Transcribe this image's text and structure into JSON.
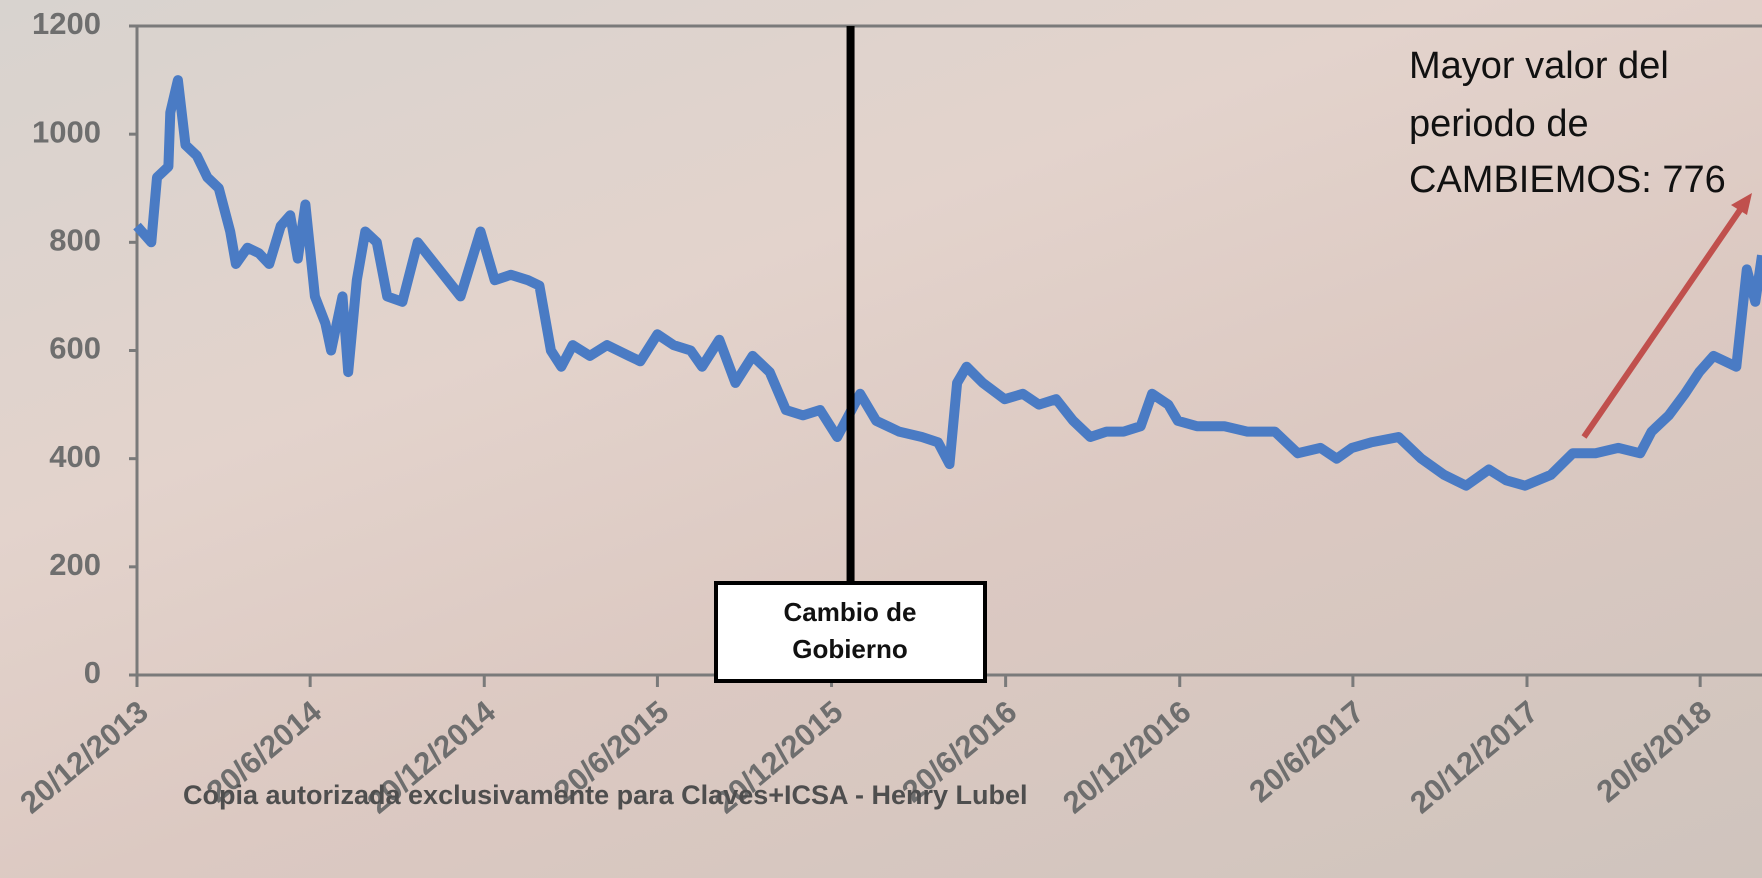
{
  "chart_data": {
    "type": "line",
    "color": "#4a7bc4",
    "x": [
      "2013-12-20",
      "2014-01-04",
      "2014-01-10",
      "2014-01-22",
      "2014-01-24",
      "2014-02-01",
      "2014-02-09",
      "2014-02-21",
      "2014-03-04",
      "2014-03-16",
      "2014-03-28",
      "2014-04-03",
      "2014-04-15",
      "2014-04-27",
      "2014-05-08",
      "2014-05-20",
      "2014-05-30",
      "2014-06-07",
      "2014-06-15",
      "2014-06-25",
      "2014-07-06",
      "2014-07-12",
      "2014-07-24",
      "2014-07-30",
      "2014-08-08",
      "2014-08-17",
      "2014-08-29",
      "2014-09-09",
      "2014-09-25",
      "2014-10-11",
      "2014-11-25",
      "2014-12-16",
      "2014-12-31",
      "2015-01-17",
      "2015-02-04",
      "2015-02-16",
      "2015-02-28",
      "2015-03-11",
      "2015-03-23",
      "2015-04-10",
      "2015-04-28",
      "2015-05-21",
      "2015-06-02",
      "2015-06-20",
      "2015-07-07",
      "2015-07-25",
      "2015-08-06",
      "2015-08-24",
      "2015-09-10",
      "2015-09-28",
      "2015-10-16",
      "2015-11-02",
      "2015-11-20",
      "2015-12-08",
      "2015-12-26",
      "2016-01-19",
      "2016-02-05",
      "2016-02-29",
      "2016-03-24",
      "2016-04-10",
      "2016-04-22",
      "2016-04-30",
      "2016-05-10",
      "2016-05-27",
      "2016-06-19",
      "2016-07-08",
      "2016-07-25",
      "2016-08-12",
      "2016-08-30",
      "2016-09-17",
      "2016-10-04",
      "2016-10-22",
      "2016-11-09",
      "2016-11-21",
      "2016-12-08",
      "2016-12-18",
      "2017-01-07",
      "2017-02-05",
      "2017-03-01",
      "2017-03-30",
      "2017-04-23",
      "2017-05-17",
      "2017-06-03",
      "2017-06-19",
      "2017-07-09",
      "2017-08-07",
      "2017-08-31",
      "2017-09-24",
      "2017-10-17",
      "2017-11-10",
      "2017-11-28",
      "2017-12-18",
      "2018-01-14",
      "2018-02-06",
      "2018-03-02",
      "2018-03-26",
      "2018-04-18",
      "2018-04-30",
      "2018-05-18",
      "2018-06-04",
      "2018-06-19",
      "2018-07-04",
      "2018-07-28",
      "2018-08-08",
      "2018-08-17",
      "2018-08-24"
    ],
    "values": [
      830,
      800,
      920,
      940,
      1040,
      1100,
      980,
      960,
      920,
      900,
      820,
      760,
      790,
      780,
      760,
      830,
      850,
      770,
      870,
      700,
      650,
      600,
      700,
      560,
      730,
      820,
      800,
      700,
      690,
      800,
      700,
      820,
      730,
      740,
      730,
      720,
      600,
      570,
      610,
      590,
      610,
      590,
      580,
      630,
      610,
      600,
      570,
      620,
      540,
      590,
      560,
      490,
      480,
      490,
      440,
      520,
      470,
      450,
      440,
      430,
      390,
      540,
      570,
      540,
      510,
      520,
      500,
      510,
      470,
      440,
      450,
      450,
      460,
      520,
      500,
      470,
      460,
      460,
      450,
      450,
      410,
      420,
      400,
      420,
      430,
      440,
      400,
      370,
      350,
      380,
      360,
      350,
      370,
      410,
      410,
      420,
      410,
      450,
      480,
      520,
      560,
      590,
      570,
      750,
      690,
      776
    ],
    "xlim": [
      "2013-12-20",
      "2018-08-24"
    ],
    "xticks": [
      {
        "value": "2013-12-20",
        "label": "20/12/2013"
      },
      {
        "value": "2014-06-20",
        "label": "20/6/2014"
      },
      {
        "value": "2014-12-20",
        "label": "20/12/2014"
      },
      {
        "value": "2015-06-20",
        "label": "20/6/2015"
      },
      {
        "value": "2015-12-20",
        "label": "20/12/2015"
      },
      {
        "value": "2016-06-20",
        "label": "20/6/2016"
      },
      {
        "value": "2016-12-20",
        "label": "20/12/2016"
      },
      {
        "value": "2017-06-20",
        "label": "20/6/2017"
      },
      {
        "value": "2017-12-20",
        "label": "20/12/2017"
      },
      {
        "value": "2018-06-20",
        "label": "20/6/2018"
      }
    ],
    "ylim": [
      0,
      1200
    ],
    "yticks": [
      0,
      200,
      400,
      600,
      800,
      1000,
      1200
    ],
    "annotations": [
      {
        "text_lines": [
          "Cambio de",
          "Gobierno"
        ],
        "x": "2016-01-09"
      },
      {
        "text_lines": [
          "Mayor valor  del",
          "periodo de",
          "CAMBIEMOS: 776"
        ]
      }
    ],
    "watermark": "Copia autorizada exclusivamente para Claves+ICSA - Henry Lubel"
  }
}
